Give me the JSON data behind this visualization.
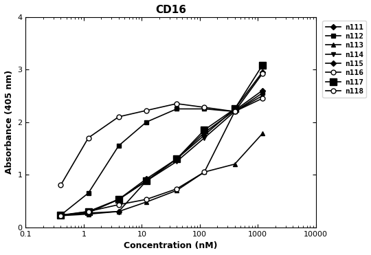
{
  "title": "CD16",
  "xlabel": "Concentration (nM)",
  "ylabel": "Absorbance (405 nm)",
  "xlim": [
    0.1,
    10000
  ],
  "ylim": [
    0,
    4
  ],
  "yticks": [
    0,
    1,
    2,
    3,
    4
  ],
  "series": [
    {
      "label": "n111",
      "marker": "D",
      "markersize": 4,
      "markerfacecolor": "black",
      "x": [
        0.4,
        1.2,
        4,
        12,
        40,
        120,
        400,
        1200
      ],
      "y": [
        0.23,
        0.27,
        0.3,
        0.88,
        1.3,
        1.75,
        2.25,
        2.95
      ]
    },
    {
      "label": "n112",
      "marker": "s",
      "markersize": 5,
      "markerfacecolor": "black",
      "x": [
        0.4,
        1.2,
        4,
        12,
        40,
        120,
        400,
        1200
      ],
      "y": [
        0.23,
        0.65,
        1.55,
        2.0,
        2.25,
        2.25,
        2.2,
        2.55
      ]
    },
    {
      "label": "n113",
      "marker": "^",
      "markersize": 5,
      "markerfacecolor": "black",
      "x": [
        0.4,
        1.2,
        4,
        12,
        40,
        120,
        400,
        1200
      ],
      "y": [
        0.22,
        0.25,
        0.3,
        0.48,
        0.7,
        1.05,
        1.2,
        1.78
      ]
    },
    {
      "label": "n114",
      "marker": "v",
      "markersize": 5,
      "markerfacecolor": "black",
      "x": [
        0.4,
        1.2,
        4,
        12,
        40,
        120,
        400,
        1200
      ],
      "y": [
        0.23,
        0.28,
        0.53,
        0.88,
        1.25,
        1.7,
        2.2,
        2.5
      ]
    },
    {
      "label": "n115",
      "marker": "D",
      "markersize": 4,
      "markerfacecolor": "black",
      "x": [
        0.4,
        1.2,
        4,
        12,
        40,
        120,
        400,
        1200
      ],
      "y": [
        0.23,
        0.28,
        0.53,
        0.92,
        1.3,
        1.8,
        2.22,
        2.6
      ]
    },
    {
      "label": "n116",
      "marker": "o",
      "markersize": 5,
      "markerfacecolor": "white",
      "x": [
        0.4,
        1.2,
        4,
        12,
        40,
        120,
        400,
        1200
      ],
      "y": [
        0.8,
        1.7,
        2.1,
        2.22,
        2.35,
        2.28,
        2.2,
        2.45
      ]
    },
    {
      "label": "n117",
      "marker": "s",
      "markersize": 7,
      "markerfacecolor": "black",
      "x": [
        0.4,
        1.2,
        4,
        12,
        40,
        120,
        400,
        1200
      ],
      "y": [
        0.23,
        0.3,
        0.53,
        0.88,
        1.3,
        1.85,
        2.25,
        3.08
      ]
    },
    {
      "label": "n118",
      "marker": "o",
      "markersize": 5,
      "markerfacecolor": "white",
      "x": [
        0.4,
        1.2,
        4,
        12,
        40,
        120,
        400,
        1200
      ],
      "y": [
        0.22,
        0.3,
        0.43,
        0.53,
        0.73,
        1.05,
        2.2,
        2.92
      ]
    }
  ],
  "line_color": "#000000",
  "legend_fontsize": 8,
  "title_fontsize": 11,
  "label_fontsize": 9,
  "tick_fontsize": 8
}
